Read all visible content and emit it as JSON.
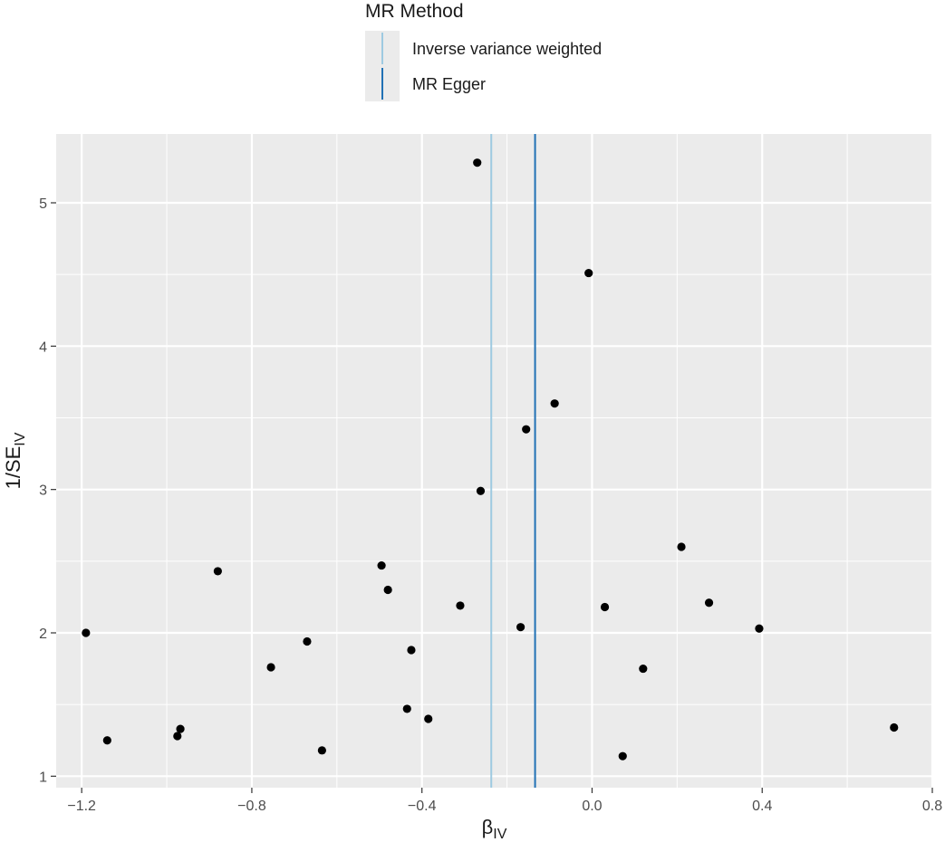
{
  "chart_data": {
    "type": "scatter",
    "title": "",
    "xlabel": {
      "main": "β",
      "sub": "IV"
    },
    "ylabel": {
      "main": "1/SE",
      "sub": "IV"
    },
    "xlim": [
      -1.26,
      0.8
    ],
    "ylim": [
      0.92,
      5.48
    ],
    "x_ticks": [
      -1.2,
      -0.8,
      -0.4,
      0.0,
      0.4,
      0.8
    ],
    "x_tick_labels": [
      "−1.2",
      "−0.8",
      "−0.4",
      "0.0",
      "0.4",
      "0.8"
    ],
    "y_ticks": [
      1,
      2,
      3,
      4,
      5
    ],
    "y_tick_labels": [
      "1",
      "2",
      "3",
      "4",
      "5"
    ],
    "grid": true,
    "legend": {
      "title": "MR Method",
      "position": "top",
      "entries": [
        {
          "label": "Inverse variance weighted",
          "color": "#9ecae1"
        },
        {
          "label": "MR Egger",
          "color": "#2171b5"
        }
      ]
    },
    "vlines": [
      {
        "name": "Inverse variance weighted",
        "x": -0.237,
        "color": "#9ecae1"
      },
      {
        "name": "MR Egger",
        "x": -0.134,
        "color": "#2171b5"
      }
    ],
    "points": [
      {
        "x": -1.19,
        "y": 2.0
      },
      {
        "x": -1.14,
        "y": 1.25
      },
      {
        "x": -0.975,
        "y": 1.28
      },
      {
        "x": -0.968,
        "y": 1.33
      },
      {
        "x": -0.88,
        "y": 2.43
      },
      {
        "x": -0.755,
        "y": 1.76
      },
      {
        "x": -0.67,
        "y": 1.94
      },
      {
        "x": -0.635,
        "y": 1.18
      },
      {
        "x": -0.495,
        "y": 2.47
      },
      {
        "x": -0.48,
        "y": 2.3
      },
      {
        "x": -0.435,
        "y": 1.47
      },
      {
        "x": -0.425,
        "y": 1.88
      },
      {
        "x": -0.385,
        "y": 1.4
      },
      {
        "x": -0.31,
        "y": 2.19
      },
      {
        "x": -0.27,
        "y": 5.28
      },
      {
        "x": -0.262,
        "y": 2.99
      },
      {
        "x": -0.168,
        "y": 2.04
      },
      {
        "x": -0.155,
        "y": 3.42
      },
      {
        "x": -0.088,
        "y": 3.6
      },
      {
        "x": -0.008,
        "y": 4.51
      },
      {
        "x": 0.03,
        "y": 2.18
      },
      {
        "x": 0.072,
        "y": 1.14
      },
      {
        "x": 0.12,
        "y": 1.75
      },
      {
        "x": 0.21,
        "y": 2.6
      },
      {
        "x": 0.275,
        "y": 2.21
      },
      {
        "x": 0.393,
        "y": 2.03
      },
      {
        "x": 0.71,
        "y": 1.34
      }
    ],
    "colors": {
      "panel_background": "#ebebeb",
      "grid_major": "#ffffff",
      "point": "#000000"
    }
  }
}
